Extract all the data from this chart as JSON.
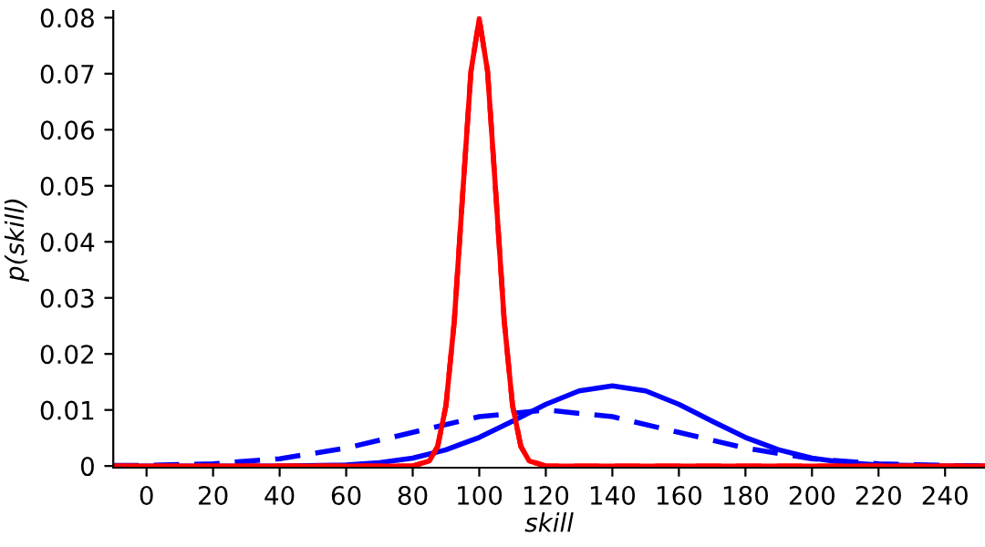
{
  "chart_data": {
    "type": "line",
    "xlabel": "skill",
    "ylabel": "p(skill)",
    "xlim": [
      -10,
      252
    ],
    "xticks": [
      0,
      20,
      40,
      60,
      80,
      100,
      120,
      140,
      160,
      180,
      200,
      220,
      240
    ],
    "ylim": [
      -0.0003,
      0.0812
    ],
    "yticks": [
      0,
      0.01,
      0.02,
      0.03,
      0.04,
      0.05,
      0.06,
      0.07,
      0.08
    ],
    "grid": false,
    "legend": false,
    "marker": "none",
    "series": [
      {
        "color": "#0000ff",
        "line_style": "dashed",
        "x": [
          -10,
          0,
          20,
          40,
          60,
          80,
          100,
          120,
          140,
          160,
          180,
          200,
          220,
          240,
          252
        ],
        "values": [
          0.0001,
          0.0001,
          0.0004,
          0.0013,
          0.0032,
          0.006,
          0.0088,
          0.01,
          0.0088,
          0.006,
          0.0032,
          0.0013,
          0.0004,
          0.0001,
          0.0
        ]
      },
      {
        "color": "#0000ff",
        "line_style": "solid",
        "x": [
          -10,
          0,
          20,
          40,
          60,
          70,
          80,
          90,
          100,
          110,
          120,
          130,
          140,
          150,
          160,
          170,
          180,
          190,
          200,
          210,
          220,
          240,
          252
        ],
        "values": [
          0.0,
          0.0,
          0.0,
          0.0,
          0.0002,
          0.0006,
          0.0014,
          0.0029,
          0.0051,
          0.008,
          0.011,
          0.0134,
          0.0143,
          0.0134,
          0.011,
          0.008,
          0.0051,
          0.0029,
          0.0014,
          0.0006,
          0.0002,
          0.0,
          0.0
        ]
      },
      {
        "color": "#ff0000",
        "line_style": "dashed",
        "x": [
          -10,
          80,
          85,
          87.5,
          90,
          92.5,
          95,
          97.5,
          100,
          102.5,
          105,
          107.5,
          110,
          112.5,
          115,
          120,
          252
        ],
        "values": [
          0.0,
          0.0,
          0.0009,
          0.0035,
          0.0108,
          0.0259,
          0.0484,
          0.0704,
          0.0798,
          0.0704,
          0.0484,
          0.0259,
          0.0108,
          0.0035,
          0.0009,
          0.0,
          0.0
        ]
      },
      {
        "color": "#ff0000",
        "line_style": "solid",
        "x": [
          -10,
          80,
          85,
          87.5,
          90,
          92.5,
          95,
          97.5,
          100,
          102.5,
          105,
          107.5,
          110,
          112.5,
          115,
          120,
          252
        ],
        "values": [
          0.0,
          0.0,
          0.0009,
          0.0035,
          0.0108,
          0.0259,
          0.0484,
          0.0704,
          0.0798,
          0.0704,
          0.0484,
          0.0259,
          0.0108,
          0.0035,
          0.0009,
          0.0,
          0.0
        ]
      }
    ]
  }
}
